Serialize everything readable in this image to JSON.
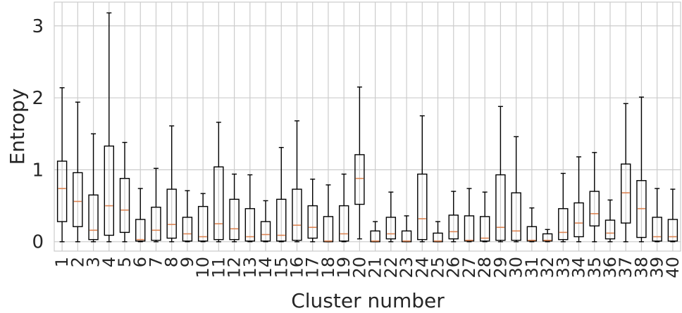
{
  "chart_data": {
    "type": "box",
    "title": "",
    "xlabel": "Cluster number",
    "ylabel": "Entropy",
    "ylim": [
      -0.13,
      3.33
    ],
    "yticks": [
      0,
      1,
      2,
      3
    ],
    "grid": true,
    "colors": {
      "box": "#000000",
      "median": "#dd8452",
      "grid": "#cccccc",
      "frame": "#cccccc",
      "text": "#262626"
    },
    "categories": [
      "1",
      "2",
      "3",
      "4",
      "5",
      "6",
      "7",
      "8",
      "9",
      "10",
      "11",
      "12",
      "13",
      "14",
      "15",
      "16",
      "17",
      "18",
      "19",
      "20",
      "21",
      "22",
      "23",
      "24",
      "25",
      "26",
      "27",
      "28",
      "29",
      "30",
      "31",
      "32",
      "33",
      "34",
      "35",
      "36",
      "37",
      "38",
      "39",
      "40"
    ],
    "boxes": [
      {
        "min": 0.0,
        "q1": 0.28,
        "median": 0.74,
        "q3": 1.12,
        "max": 2.14
      },
      {
        "min": 0.0,
        "q1": 0.21,
        "median": 0.56,
        "q3": 0.96,
        "max": 1.94
      },
      {
        "min": 0.0,
        "q1": 0.03,
        "median": 0.16,
        "q3": 0.65,
        "max": 1.5
      },
      {
        "min": 0.0,
        "q1": 0.09,
        "median": 0.5,
        "q3": 1.33,
        "max": 3.18
      },
      {
        "min": 0.0,
        "q1": 0.13,
        "median": 0.44,
        "q3": 0.88,
        "max": 1.38
      },
      {
        "min": 0.0,
        "q1": 0.01,
        "median": 0.03,
        "q3": 0.31,
        "max": 0.74
      },
      {
        "min": 0.0,
        "q1": 0.02,
        "median": 0.16,
        "q3": 0.48,
        "max": 1.02
      },
      {
        "min": 0.0,
        "q1": 0.05,
        "median": 0.24,
        "q3": 0.73,
        "max": 1.61
      },
      {
        "min": 0.0,
        "q1": 0.01,
        "median": 0.11,
        "q3": 0.34,
        "max": 0.71
      },
      {
        "min": 0.0,
        "q1": 0.01,
        "median": 0.07,
        "q3": 0.49,
        "max": 0.67
      },
      {
        "min": 0.0,
        "q1": 0.03,
        "median": 0.25,
        "q3": 1.04,
        "max": 1.66
      },
      {
        "min": 0.0,
        "q1": 0.03,
        "median": 0.18,
        "q3": 0.59,
        "max": 0.94
      },
      {
        "min": 0.0,
        "q1": 0.01,
        "median": 0.07,
        "q3": 0.46,
        "max": 0.93
      },
      {
        "min": 0.0,
        "q1": 0.01,
        "median": 0.1,
        "q3": 0.28,
        "max": 0.57
      },
      {
        "min": 0.0,
        "q1": 0.01,
        "median": 0.09,
        "q3": 0.59,
        "max": 1.31
      },
      {
        "min": 0.0,
        "q1": 0.02,
        "median": 0.23,
        "q3": 0.73,
        "max": 1.68
      },
      {
        "min": 0.0,
        "q1": 0.05,
        "median": 0.2,
        "q3": 0.5,
        "max": 0.87
      },
      {
        "min": 0.0,
        "q1": 0.0,
        "median": 0.01,
        "q3": 0.35,
        "max": 0.79
      },
      {
        "min": 0.0,
        "q1": 0.01,
        "median": 0.11,
        "q3": 0.5,
        "max": 0.94
      },
      {
        "min": 0.04,
        "q1": 0.52,
        "median": 0.88,
        "q3": 1.21,
        "max": 2.15
      },
      {
        "min": 0.0,
        "q1": 0.0,
        "median": 0.01,
        "q3": 0.15,
        "max": 0.28
      },
      {
        "min": 0.0,
        "q1": 0.04,
        "median": 0.11,
        "q3": 0.34,
        "max": 0.69
      },
      {
        "min": 0.0,
        "q1": 0.0,
        "median": 0.01,
        "q3": 0.15,
        "max": 0.36
      },
      {
        "min": 0.0,
        "q1": 0.03,
        "median": 0.32,
        "q3": 0.94,
        "max": 1.75
      },
      {
        "min": 0.0,
        "q1": 0.0,
        "median": 0.01,
        "q3": 0.12,
        "max": 0.28
      },
      {
        "min": 0.0,
        "q1": 0.04,
        "median": 0.14,
        "q3": 0.37,
        "max": 0.7
      },
      {
        "min": 0.0,
        "q1": 0.01,
        "median": 0.02,
        "q3": 0.36,
        "max": 0.74
      },
      {
        "min": 0.0,
        "q1": 0.01,
        "median": 0.05,
        "q3": 0.35,
        "max": 0.69
      },
      {
        "min": 0.0,
        "q1": 0.02,
        "median": 0.2,
        "q3": 0.93,
        "max": 1.88
      },
      {
        "min": 0.0,
        "q1": 0.02,
        "median": 0.15,
        "q3": 0.68,
        "max": 1.46
      },
      {
        "min": 0.0,
        "q1": 0.01,
        "median": 0.02,
        "q3": 0.21,
        "max": 0.47
      },
      {
        "min": 0.0,
        "q1": 0.01,
        "median": 0.02,
        "q3": 0.11,
        "max": 0.17
      },
      {
        "min": 0.0,
        "q1": 0.03,
        "median": 0.13,
        "q3": 0.46,
        "max": 0.95
      },
      {
        "min": 0.0,
        "q1": 0.07,
        "median": 0.26,
        "q3": 0.54,
        "max": 1.18
      },
      {
        "min": 0.0,
        "q1": 0.22,
        "median": 0.39,
        "q3": 0.7,
        "max": 1.24
      },
      {
        "min": 0.0,
        "q1": 0.04,
        "median": 0.12,
        "q3": 0.3,
        "max": 0.58
      },
      {
        "min": 0.0,
        "q1": 0.26,
        "median": 0.68,
        "q3": 1.08,
        "max": 1.92
      },
      {
        "min": 0.0,
        "q1": 0.06,
        "median": 0.46,
        "q3": 0.85,
        "max": 2.01
      },
      {
        "min": 0.0,
        "q1": 0.01,
        "median": 0.07,
        "q3": 0.34,
        "max": 0.74
      },
      {
        "min": 0.0,
        "q1": 0.01,
        "median": 0.07,
        "q3": 0.31,
        "max": 0.73
      }
    ]
  }
}
